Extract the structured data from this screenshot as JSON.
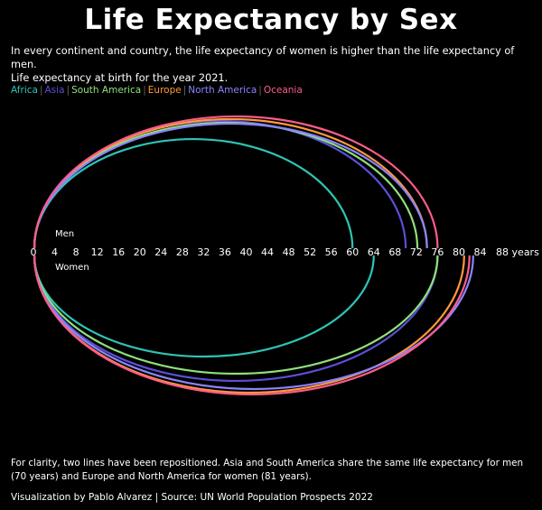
{
  "title": "Life Expectancy by Sex",
  "subtitle_line1": "In every continent and country, the life expectancy of women is higher than the life expectancy of men.",
  "subtitle_line2": "Life expectancy at birth for the year 2021.",
  "footnote": "For clarity, two lines have been repositioned. Asia and South America share the same life expectancy for men (70 years) and Europe and North America for women (81 years).",
  "credit": "Visualization by Pablo Alvarez | Source: UN World Population Prospects 2022",
  "colors": {
    "background": "#000000",
    "Africa": "#2ec4b6",
    "Asia": "#5b4fd6",
    "South America": "#8fe07a",
    "Europe": "#ff9a3c",
    "North America": "#8a84ff",
    "Oceania": "#ff5c8a"
  },
  "chart_data": {
    "type": "line",
    "title": "Life Expectancy by Sex",
    "xlabel": "years",
    "xlim": [
      0,
      88
    ],
    "x_ticks": [
      0,
      4,
      8,
      12,
      16,
      20,
      24,
      28,
      32,
      36,
      40,
      44,
      48,
      52,
      56,
      60,
      64,
      68,
      72,
      76,
      80,
      84,
      88
    ],
    "x_tick_suffix_last": "years",
    "upper_label": "Men",
    "lower_label": "Women",
    "categories": [
      "Men",
      "Women"
    ],
    "series": [
      {
        "name": "Africa",
        "values": [
          60,
          64
        ]
      },
      {
        "name": "Asia",
        "values": [
          70,
          76
        ]
      },
      {
        "name": "South America",
        "values": [
          70,
          76
        ]
      },
      {
        "name": "Europe",
        "values": [
          74,
          81
        ]
      },
      {
        "name": "North America",
        "values": [
          74,
          81
        ]
      },
      {
        "name": "Oceania",
        "values": [
          76,
          82
        ]
      }
    ]
  }
}
